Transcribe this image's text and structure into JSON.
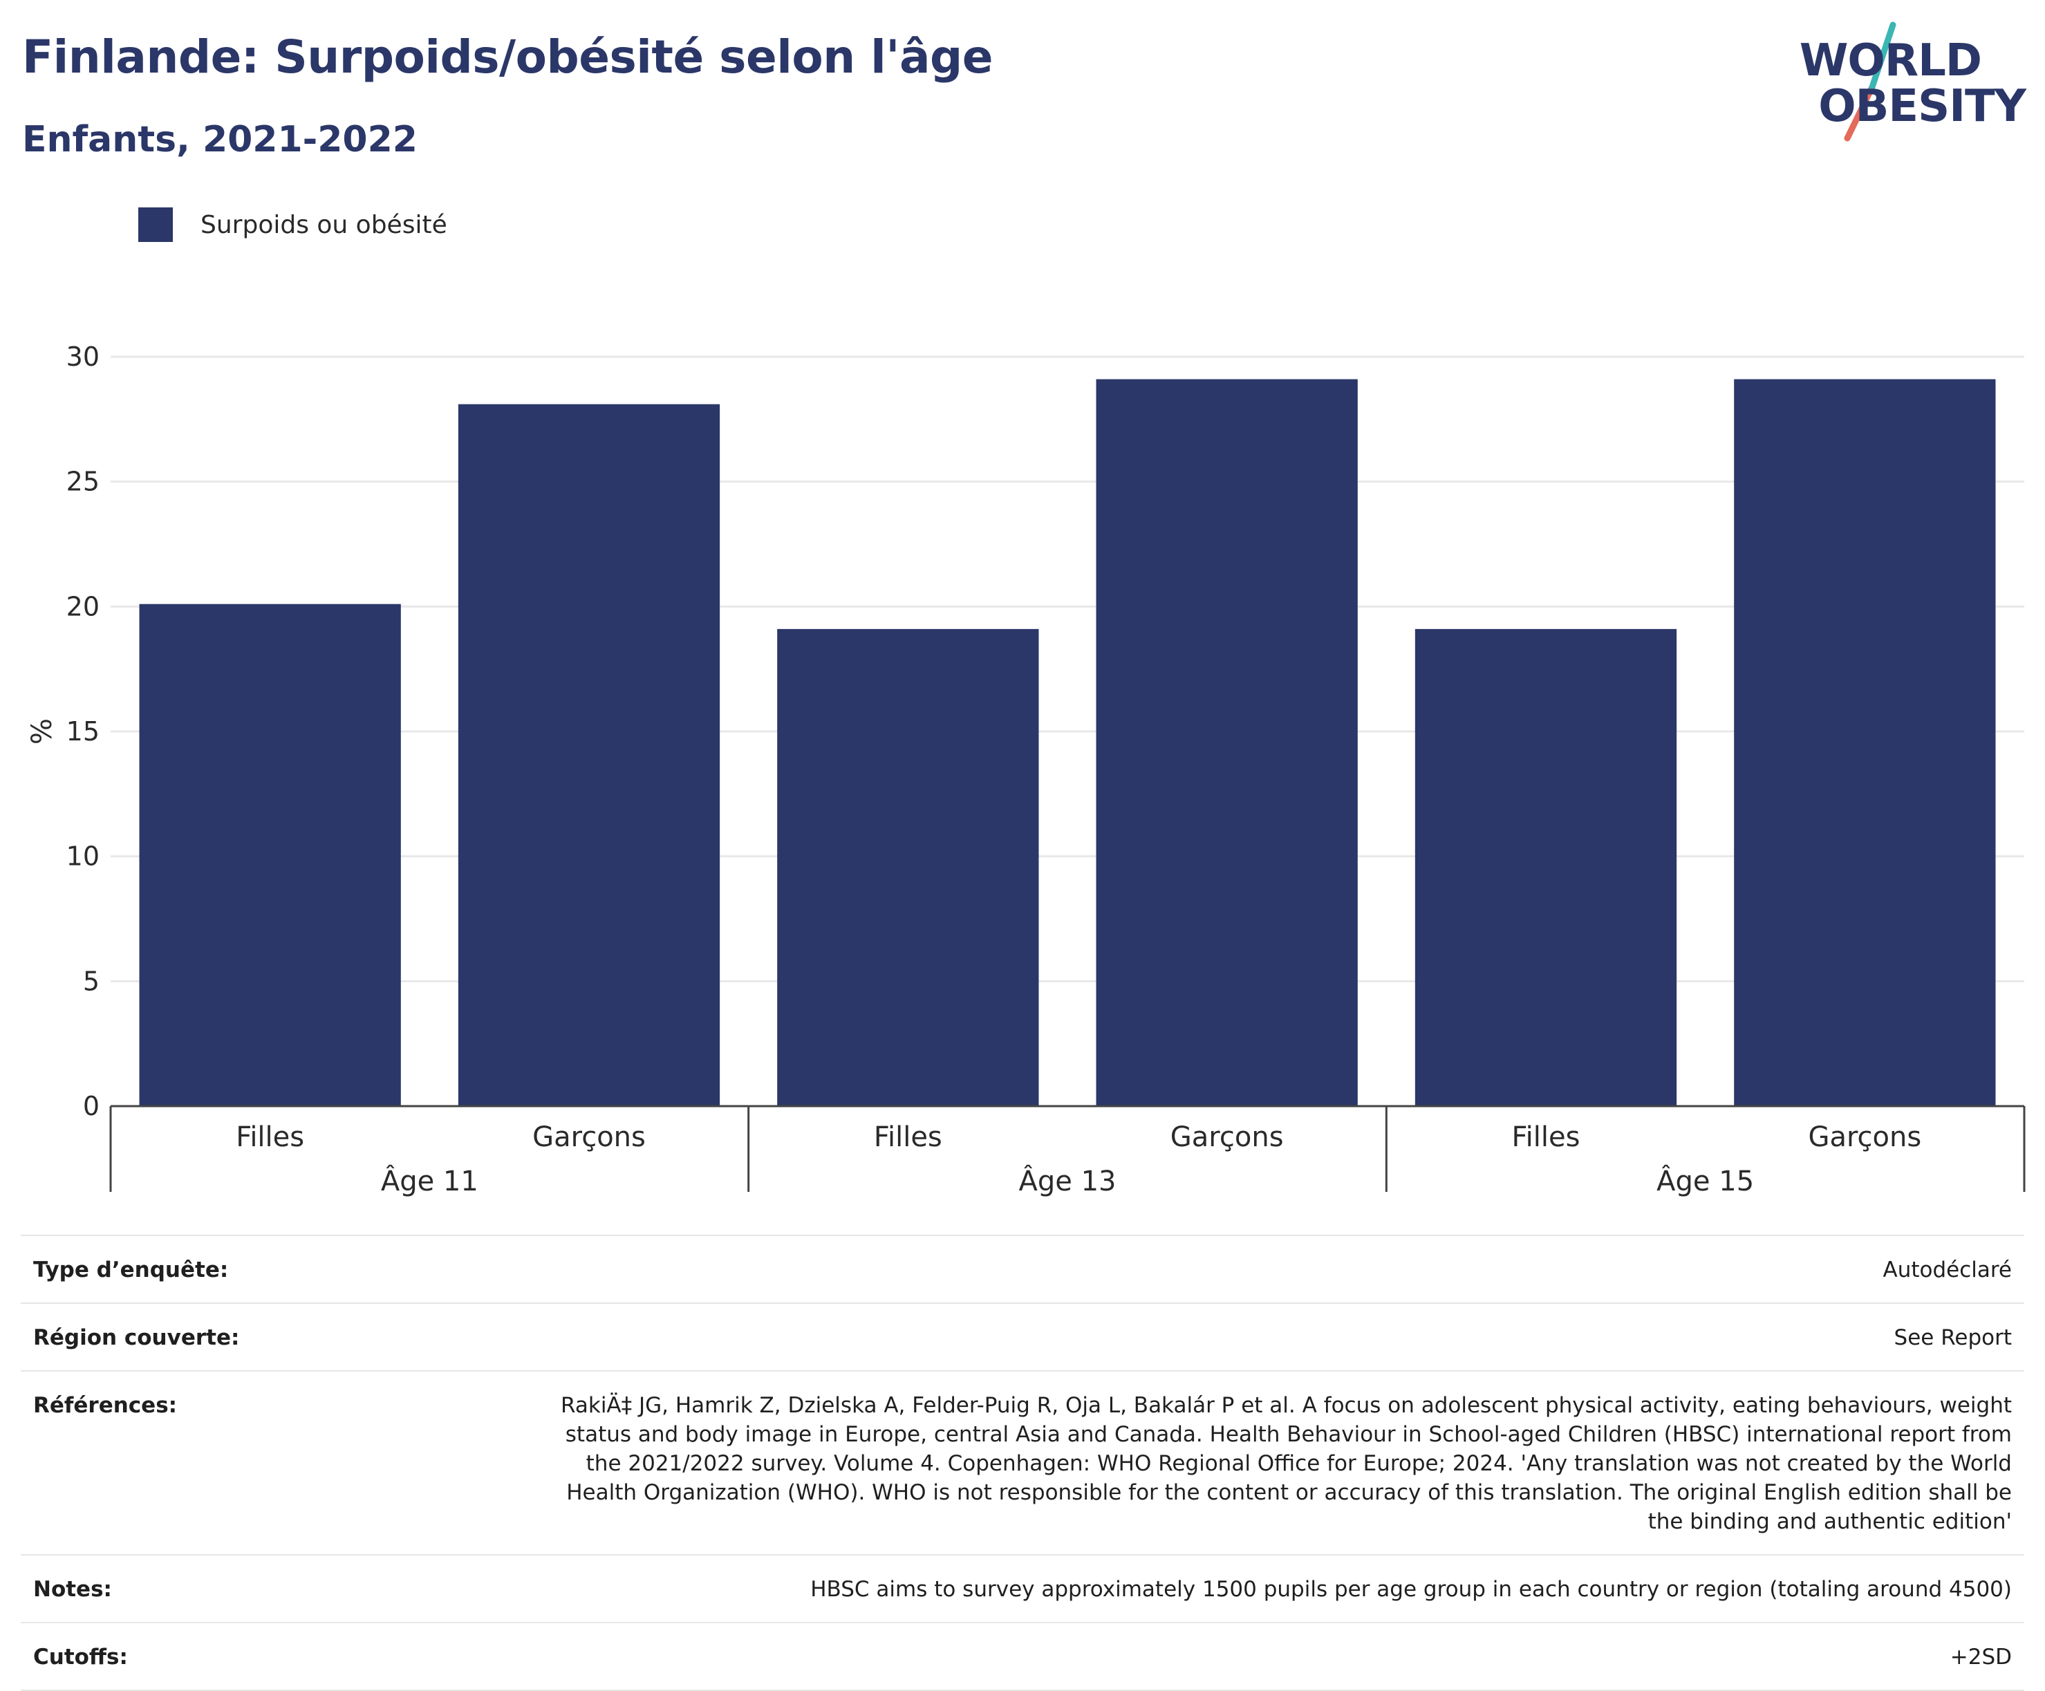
{
  "header": {
    "title": "Finlande: Surpoids/obésité selon l'âge",
    "subtitle": "Enfants, 2021-2022"
  },
  "logo": {
    "line1": "WORLD",
    "line2": "OBESITY",
    "accent_teal": "#3bb6b4",
    "accent_coral": "#e46a5a"
  },
  "legend": {
    "label": "Surpoids ou obésité",
    "color": "#2b3768"
  },
  "chart_data": {
    "type": "bar",
    "title": "Finlande: Surpoids/obésité selon l'âge",
    "subtitle": "Enfants, 2021-2022",
    "ylabel": "%",
    "ylim": [
      0,
      30
    ],
    "yticks": [
      0,
      5,
      10,
      15,
      20,
      25,
      30
    ],
    "grid": true,
    "legend_position": "top-left",
    "groups": [
      "Âge 11",
      "Âge 13",
      "Âge 15"
    ],
    "categories": [
      "Filles",
      "Garçons",
      "Filles",
      "Garçons",
      "Filles",
      "Garçons"
    ],
    "series": [
      {
        "name": "Surpoids ou obésité",
        "color": "#2b3768",
        "values": [
          20.1,
          28.1,
          19.1,
          29.1,
          19.1,
          29.1
        ]
      }
    ]
  },
  "info": [
    {
      "key": "Type d’enquête:",
      "value": "Autodéclaré"
    },
    {
      "key": "Région couverte:",
      "value": "See Report"
    },
    {
      "key": "Références:",
      "value": "RakiÄ‡ JG, Hamrik Z, Dzielska A, Felder-Puig R, Oja L, Bakalár P et al. A focus on adolescent physical activity, eating behaviours, weight status and body image in Europe, central Asia and Canada. Health Behaviour in School-aged Children (HBSC) international report from the 2021/2022 survey. Volume 4. Copenhagen: WHO Regional Office for Europe; 2024. 'Any translation was not created by the World Health Organization (WHO). WHO is not responsible for the content or accuracy of this translation. The original English edition shall be the binding and authentic edition'"
    },
    {
      "key": "Notes:",
      "value": "HBSC aims to survey approximately 1500 pupils per age group in each country or region (totaling around 4500)"
    },
    {
      "key": "Cutoffs:",
      "value": "+2SD"
    }
  ]
}
